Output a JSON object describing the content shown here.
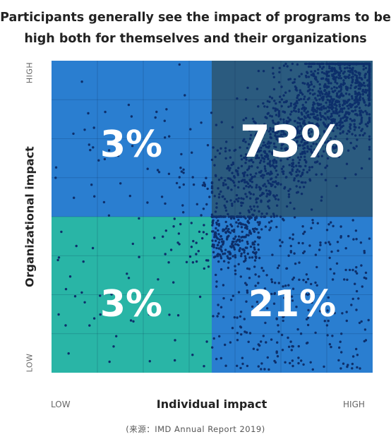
{
  "chart_data": {
    "type": "scatter",
    "title_lines": [
      "Participants generally see the impact of programs to be",
      "high both for themselves and their organizations"
    ],
    "xlabel": "Individual impact",
    "ylabel": "Organizational impact",
    "x_ticks": {
      "low": "LOW",
      "high": "HIGH"
    },
    "y_ticks": {
      "low": "LOW",
      "high": "HIGH"
    },
    "quadrants": [
      {
        "id": "top-left",
        "label": "3%",
        "value": 3,
        "color": "#2a7ed0"
      },
      {
        "id": "top-right",
        "label": "73%",
        "value": 73,
        "color": "#2b5b7f"
      },
      {
        "id": "bottom-left",
        "label": "3%",
        "value": 3,
        "color": "#29b5a6"
      },
      {
        "id": "bottom-right",
        "label": "21%",
        "value": 21,
        "color": "#2a7ed0"
      }
    ],
    "dot_color": "#0d2f6b",
    "grid": true
  },
  "source": "(来源：IMD Annual Report 2019)"
}
